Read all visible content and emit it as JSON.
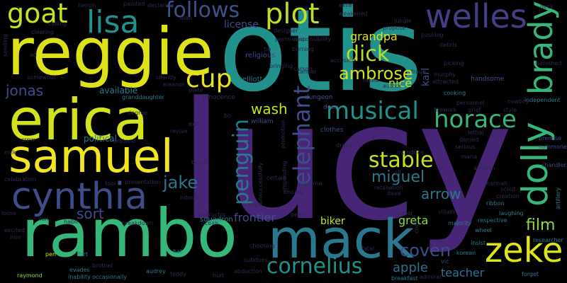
{
  "background": "#000000",
  "palette": {
    "purple": "#482677",
    "deep_purple": "#3b1f6b",
    "blue": "#3e4c8a",
    "teal": "#2a788e",
    "teal_green": "#21918c",
    "green": "#35b779",
    "lime": "#8fd744",
    "yellow": "#dde318",
    "dark": "#2d2a4f"
  },
  "words": [
    {
      "text": "lucy",
      "color": "#482677"
    },
    {
      "text": "otis",
      "color": "#21918c"
    },
    {
      "text": "reggie",
      "color": "#dde318"
    },
    {
      "text": "rambo",
      "color": "#35b779"
    },
    {
      "text": "erica",
      "color": "#d2e21b"
    },
    {
      "text": "samuel",
      "color": "#f0e51e"
    },
    {
      "text": "mack",
      "color": "#2a788e"
    },
    {
      "text": "cynthia",
      "color": "#3e4c8a"
    },
    {
      "text": "zeke",
      "color": "#dde318"
    },
    {
      "text": "dolly",
      "color": "#35b779"
    },
    {
      "text": "brady",
      "color": "#35b779"
    },
    {
      "text": "welles",
      "color": "#433e85"
    },
    {
      "text": "lisa",
      "color": "#21918c"
    },
    {
      "text": "goat",
      "color": "#c8e020"
    },
    {
      "text": "plot",
      "color": "#bddf26"
    },
    {
      "text": "follows",
      "color": "#3b528b"
    },
    {
      "text": "cornelius",
      "color": "#21918c"
    },
    {
      "text": "musical",
      "color": "#21918c"
    },
    {
      "text": "horace",
      "color": "#35b779"
    },
    {
      "text": "dick",
      "color": "#b5de2b"
    },
    {
      "text": "ambrose",
      "color": "#d2e21b"
    },
    {
      "text": "cup",
      "color": "#e5e419"
    },
    {
      "text": "elephant",
      "color": "#3e4c8a"
    },
    {
      "text": "penguin",
      "color": "#2a788e"
    },
    {
      "text": "stable",
      "color": "#c8e020"
    },
    {
      "text": "coven",
      "color": "#3e4c8a"
    },
    {
      "text": "film",
      "color": "#8fd744"
    },
    {
      "text": "jake",
      "color": "#2a788e"
    },
    {
      "text": "miguel",
      "color": "#2a788e"
    },
    {
      "text": "jonas",
      "color": "#3e4c8a"
    },
    {
      "text": "wash",
      "color": "#c8e020"
    },
    {
      "text": "sort",
      "color": "#3e4c8a"
    },
    {
      "text": "arrow",
      "color": "#2a788e"
    },
    {
      "text": "grandpa",
      "color": "#dde318"
    },
    {
      "text": "nice",
      "color": "#c8e020"
    },
    {
      "text": "apple",
      "color": "#2d708e"
    },
    {
      "text": "teacher",
      "color": "#2a788e"
    },
    {
      "text": "greta",
      "color": "#8fd744"
    },
    {
      "text": "frontier",
      "color": "#3e4c8a"
    },
    {
      "text": "biker",
      "color": "#c8e020"
    },
    {
      "text": "karl",
      "color": "#3e4c8a"
    },
    {
      "text": "license",
      "color": "#3e4c8a"
    },
    {
      "text": "available",
      "color": "#2a788e"
    },
    {
      "text": "political",
      "color": "#2a788e"
    },
    {
      "text": "squadron",
      "color": "#2a788e"
    },
    {
      "text": "elliott",
      "color": "#2a788e"
    },
    {
      "text": "religious",
      "color": "#3e4c8a"
    },
    {
      "text": "innocence",
      "color": "#2d2a4f"
    },
    {
      "text": "deer",
      "color": "#3e4c8a"
    },
    {
      "text": "clothes",
      "color": "#3e4c8a"
    },
    {
      "text": "william",
      "color": "#3e4c8a"
    },
    {
      "text": "dungeon",
      "color": "#3e4c8a"
    },
    {
      "text": "calling",
      "color": "#2d2a4f"
    },
    {
      "text": "heroin",
      "color": "#2d2a4f"
    },
    {
      "text": "painted",
      "color": "#2d2a4f"
    },
    {
      "text": "declaring",
      "color": "#2d2a4f"
    },
    {
      "text": "exile",
      "color": "#2d2a4f"
    },
    {
      "text": "deck",
      "color": "#2d2a4f"
    },
    {
      "text": "jungle",
      "color": "#2d2a4f"
    },
    {
      "text": "pushing",
      "color": "#2d2a4f"
    },
    {
      "text": "debris",
      "color": "#2d2a4f"
    },
    {
      "text": "banished",
      "color": "#2d2a4f"
    },
    {
      "text": "picking",
      "color": "#2d2a4f"
    },
    {
      "text": "handsome",
      "color": "#3e4c8a"
    },
    {
      "text": "cooking",
      "color": "#2a788e"
    },
    {
      "text": "independent",
      "color": "#2a788e"
    },
    {
      "text": "personnel",
      "color": "#2d2a4f"
    },
    {
      "text": "grief",
      "color": "#2d2a4f"
    },
    {
      "text": "style",
      "color": "#2d2a4f"
    },
    {
      "text": "cowboy",
      "color": "#2d2a4f"
    },
    {
      "text": "firework",
      "color": "#2d2a4f"
    },
    {
      "text": "premise",
      "color": "#3e4c8a"
    },
    {
      "text": "summoned",
      "color": "#3e4c8a"
    },
    {
      "text": "chandler",
      "color": "#3e4c8a"
    },
    {
      "text": "lethal",
      "color": "#2d2a4f"
    },
    {
      "text": "denied",
      "color": "#2d2a4f"
    },
    {
      "text": "serious",
      "color": "#2d2a4f"
    },
    {
      "text": "maria",
      "color": "#2d2a4f"
    },
    {
      "text": "awaken",
      "color": "#2d2a4f"
    },
    {
      "text": "hannah",
      "color": "#2d2a4f"
    },
    {
      "text": "scout",
      "color": "#2d2a4f"
    },
    {
      "text": "creation",
      "color": "#2d2a4f"
    },
    {
      "text": "ribbon",
      "color": "#2a788e"
    },
    {
      "text": "laughing",
      "color": "#2a788e"
    },
    {
      "text": "respective",
      "color": "#2a788e"
    },
    {
      "text": "majority",
      "color": "#2a788e"
    },
    {
      "text": "insist",
      "color": "#2a788e"
    },
    {
      "text": "wheel",
      "color": "#2a788e"
    },
    {
      "text": "artillery",
      "color": "#2a788e"
    },
    {
      "text": "researcher",
      "color": "#2a788e"
    },
    {
      "text": "forget",
      "color": "#2a788e"
    },
    {
      "text": "breakfast",
      "color": "#2a788e"
    },
    {
      "text": "admiral",
      "color": "#2d2a4f"
    },
    {
      "text": "vic",
      "color": "#3e4c8a"
    },
    {
      "text": "korean",
      "color": "#2a788e"
    },
    {
      "text": "fatal",
      "color": "#2d2a4f"
    },
    {
      "text": "dave",
      "color": "#2d2a4f"
    },
    {
      "text": "retaliation",
      "color": "#2d2a4f"
    },
    {
      "text": "kissing",
      "color": "#2d2a4f"
    },
    {
      "text": "costume",
      "color": "#2d2a4f"
    },
    {
      "text": "certain",
      "color": "#2d2a4f"
    },
    {
      "text": "stark",
      "color": "#2d2a4f"
    },
    {
      "text": "instructor",
      "color": "#2d2a4f"
    },
    {
      "text": "ocean",
      "color": "#2d2a4f"
    },
    {
      "text": "choosing",
      "color": "#2d2a4f"
    },
    {
      "text": "subdues",
      "color": "#2d2a4f"
    },
    {
      "text": "abduction",
      "color": "#2d2a4f"
    },
    {
      "text": "hurt",
      "color": "#2d2a4f"
    },
    {
      "text": "teddy",
      "color": "#2d2a4f"
    },
    {
      "text": "audrey",
      "color": "#2a788e"
    },
    {
      "text": "hat",
      "color": "#2a788e"
    },
    {
      "text": "occasionally",
      "color": "#2a788e"
    },
    {
      "text": "inability",
      "color": "#2a788e"
    },
    {
      "text": "evades",
      "color": "#2a788e"
    },
    {
      "text": "raymond",
      "color": "#8fd744"
    },
    {
      "text": "pen",
      "color": "#c8e020"
    },
    {
      "text": "fort",
      "color": "#2a788e"
    },
    {
      "text": "brothel",
      "color": "#2d2a4f"
    },
    {
      "text": "excited",
      "color": "#2d2a4f"
    },
    {
      "text": "iron",
      "color": "#2d2a4f"
    },
    {
      "text": "lion",
      "color": "#2d2a4f"
    },
    {
      "text": "habit",
      "color": "#2d2a4f"
    },
    {
      "text": "loose",
      "color": "#2d2a4f"
    },
    {
      "text": "celebration",
      "color": "#2d2a4f"
    },
    {
      "text": "milk",
      "color": "#2d2a4f"
    },
    {
      "text": "crew",
      "color": "#2d2a4f"
    },
    {
      "text": "pretend",
      "color": "#2d2a4f"
    },
    {
      "text": "breakdown",
      "color": "#2d2a4f"
    },
    {
      "text": "hitman",
      "color": "#2d2a4f"
    },
    {
      "text": "tool",
      "color": "#2d2a4f"
    },
    {
      "text": "presentation",
      "color": "#2d2a4f"
    },
    {
      "text": "bond",
      "color": "#2d2a4f"
    },
    {
      "text": "revive",
      "color": "#2d2a4f"
    },
    {
      "text": "exit",
      "color": "#2d2a4f"
    },
    {
      "text": "degree",
      "color": "#2d2a4f"
    },
    {
      "text": "plate",
      "color": "#2d2a4f"
    },
    {
      "text": "silently",
      "color": "#2d2a4f"
    },
    {
      "text": "eleanor",
      "color": "#2d2a4f"
    },
    {
      "text": "granddaughter",
      "color": "#2a788e"
    },
    {
      "text": "clearing",
      "color": "#2d2a4f"
    },
    {
      "text": "sending",
      "color": "#2d2a4f"
    },
    {
      "text": "ad",
      "color": "#2d2a4f"
    },
    {
      "text": "somewhat",
      "color": "#2d2a4f"
    },
    {
      "text": "designer",
      "color": "#2d2a4f"
    },
    {
      "text": "permission",
      "color": "#2d2a4f"
    },
    {
      "text": "responsibility",
      "color": "#2d2a4f"
    },
    {
      "text": "weakened",
      "color": "#2d2a4f"
    },
    {
      "text": "propose",
      "color": "#2d2a4f"
    },
    {
      "text": "burning",
      "color": "#2d2a4f"
    },
    {
      "text": "accusing",
      "color": "#2d2a4f"
    },
    {
      "text": "bringing",
      "color": "#2d2a4f"
    },
    {
      "text": "tanner",
      "color": "#2d2a4f"
    },
    {
      "text": "faked",
      "color": "#2d2a4f"
    },
    {
      "text": "author",
      "color": "#2d2a4f"
    },
    {
      "text": "fraud",
      "color": "#2d2a4f"
    },
    {
      "text": "murphy",
      "color": "#2d2a4f"
    },
    {
      "text": "attracted",
      "color": "#2d2a4f"
    },
    {
      "text": "loan",
      "color": "#2d2a4f"
    },
    {
      "text": "drake",
      "color": "#2d2a4f"
    },
    {
      "text": "promotion",
      "color": "#2d2a4f"
    },
    {
      "text": "introduce",
      "color": "#2d2a4f"
    },
    {
      "text": "gil",
      "color": "#2d2a4f"
    },
    {
      "text": "villain",
      "color": "#2d2a4f"
    },
    {
      "text": "pearl",
      "color": "#2d2a4f"
    },
    {
      "text": "runner",
      "color": "#2d2a4f"
    },
    {
      "text": "cook",
      "color": "#2d2a4f"
    },
    {
      "text": "bo",
      "color": "#2d2a4f"
    },
    {
      "text": "tip",
      "color": "#2d2a4f"
    },
    {
      "text": "carson",
      "color": "#2d2a4f"
    },
    {
      "text": "impending",
      "color": "#2d2a4f"
    },
    {
      "text": "unsuccessfully",
      "color": "#2d2a4f"
    }
  ]
}
